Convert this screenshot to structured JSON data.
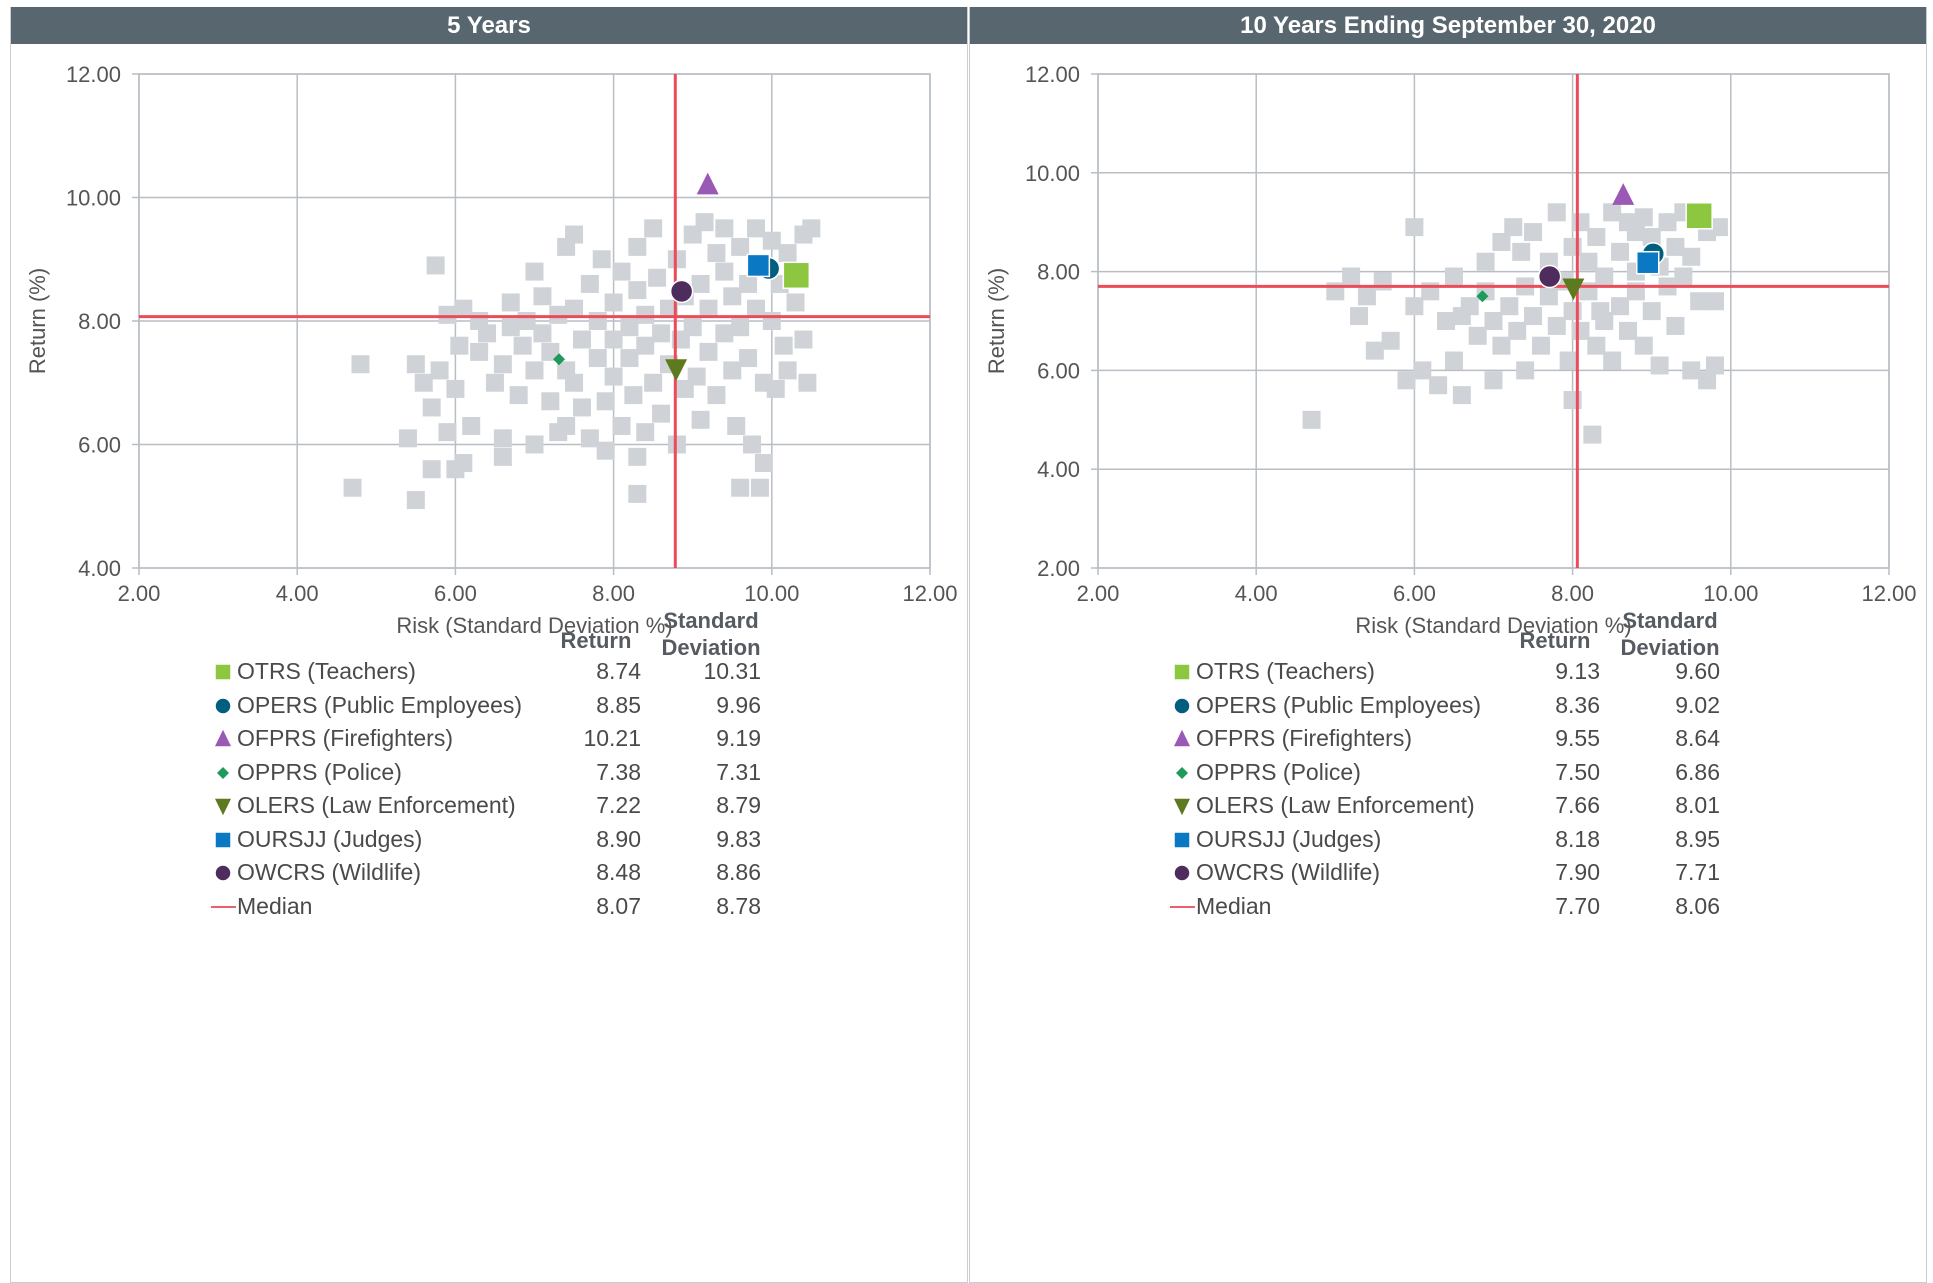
{
  "panels": [
    {
      "title": "5 Years",
      "legend_headers": {
        "return": "Return",
        "std": "Standard Deviation"
      },
      "legend": [
        {
          "label": "OTRS (Teachers)",
          "ret": "8.74",
          "std": "10.31",
          "symbol": "square",
          "color": "#8dc63f"
        },
        {
          "label": "OPERS (Public Employees)",
          "ret": "8.85",
          "std": "9.96",
          "symbol": "circle",
          "color": "#005f7f"
        },
        {
          "label": "OFPRS (Firefighters)",
          "ret": "10.21",
          "std": "9.19",
          "symbol": "triangle",
          "color": "#9b59b6"
        },
        {
          "label": "OPPRS (Police)",
          "ret": "7.38",
          "std": "7.31",
          "symbol": "diamond",
          "color": "#1e9a5a"
        },
        {
          "label": "OLERS (Law Enforcement)",
          "ret": "7.22",
          "std": "8.79",
          "symbol": "triangle-down",
          "color": "#5d7a1f"
        },
        {
          "label": "OURSJJ (Judges)",
          "ret": "8.90",
          "std": "9.83",
          "symbol": "square",
          "color": "#0a78c2"
        },
        {
          "label": "OWCRS (Wildlife)",
          "ret": "8.48",
          "std": "8.86",
          "symbol": "circle",
          "color": "#4e2d5e"
        },
        {
          "label": "Median",
          "ret": "8.07",
          "std": "8.78",
          "symbol": "line",
          "color": "#ec5f6c"
        }
      ]
    },
    {
      "title": "10 Years Ending September 30, 2020",
      "legend_headers": {
        "return": "Return",
        "std": "Standard Deviation"
      },
      "legend": [
        {
          "label": "OTRS (Teachers)",
          "ret": "9.13",
          "std": "9.60",
          "symbol": "square",
          "color": "#8dc63f"
        },
        {
          "label": "OPERS (Public Employees)",
          "ret": "8.36",
          "std": "9.02",
          "symbol": "circle",
          "color": "#005f7f"
        },
        {
          "label": "OFPRS (Firefighters)",
          "ret": "9.55",
          "std": "8.64",
          "symbol": "triangle",
          "color": "#9b59b6"
        },
        {
          "label": "OPPRS (Police)",
          "ret": "7.50",
          "std": "6.86",
          "symbol": "diamond",
          "color": "#1e9a5a"
        },
        {
          "label": "OLERS (Law Enforcement)",
          "ret": "7.66",
          "std": "8.01",
          "symbol": "triangle-down",
          "color": "#5d7a1f"
        },
        {
          "label": "OURSJJ (Judges)",
          "ret": "8.18",
          "std": "8.95",
          "symbol": "square",
          "color": "#0a78c2"
        },
        {
          "label": "OWCRS (Wildlife)",
          "ret": "7.90",
          "std": "7.71",
          "symbol": "circle",
          "color": "#4e2d5e"
        },
        {
          "label": "Median",
          "ret": "7.70",
          "std": "8.06",
          "symbol": "line",
          "color": "#ec5f6c"
        }
      ]
    }
  ],
  "chart_data": [
    {
      "type": "scatter",
      "title": "5 Years",
      "xlabel": "Risk (Standard Deviation %)",
      "ylabel": "Return (%)",
      "xlim": [
        2,
        12
      ],
      "ylim": [
        4,
        12
      ],
      "xticks": [
        "2.00",
        "4.00",
        "6.00",
        "8.00",
        "10.00",
        "12.00"
      ],
      "yticks": [
        "4.00",
        "6.00",
        "8.00",
        "10.00",
        "12.00"
      ],
      "grid": true,
      "median": {
        "x": 8.78,
        "y": 8.07
      },
      "universe_color": "#cfd3d8",
      "universe": [
        [
          4.7,
          5.3
        ],
        [
          4.8,
          7.3
        ],
        [
          5.4,
          6.1
        ],
        [
          5.5,
          7.3
        ],
        [
          5.6,
          7.0
        ],
        [
          5.7,
          6.6
        ],
        [
          5.7,
          5.6
        ],
        [
          5.75,
          8.9
        ],
        [
          5.8,
          7.2
        ],
        [
          5.9,
          6.2
        ],
        [
          5.9,
          8.1
        ],
        [
          6.0,
          6.9
        ],
        [
          6.05,
          7.6
        ],
        [
          6.1,
          5.7
        ],
        [
          6.1,
          8.2
        ],
        [
          6.2,
          6.3
        ],
        [
          6.3,
          7.5
        ],
        [
          6.3,
          8.0
        ],
        [
          6.4,
          7.8
        ],
        [
          6.5,
          7.0
        ],
        [
          6.6,
          6.1
        ],
        [
          6.6,
          5.8
        ],
        [
          6.6,
          7.3
        ],
        [
          6.7,
          7.9
        ],
        [
          6.7,
          8.3
        ],
        [
          6.8,
          6.8
        ],
        [
          6.85,
          7.6
        ],
        [
          6.9,
          8.0
        ],
        [
          7.0,
          7.2
        ],
        [
          7.0,
          6.0
        ],
        [
          7.0,
          8.8
        ],
        [
          7.1,
          7.8
        ],
        [
          7.1,
          8.4
        ],
        [
          7.2,
          6.7
        ],
        [
          7.2,
          7.5
        ],
        [
          7.3,
          6.2
        ],
        [
          7.3,
          8.1
        ],
        [
          7.4,
          7.2
        ],
        [
          7.4,
          6.3
        ],
        [
          7.5,
          8.2
        ],
        [
          7.5,
          9.4
        ],
        [
          7.5,
          7.0
        ],
        [
          7.6,
          7.7
        ],
        [
          7.6,
          6.6
        ],
        [
          7.7,
          8.6
        ],
        [
          7.7,
          6.1
        ],
        [
          7.8,
          7.4
        ],
        [
          7.8,
          8.0
        ],
        [
          7.85,
          9.0
        ],
        [
          7.9,
          6.7
        ],
        [
          7.9,
          5.9
        ],
        [
          8.0,
          8.3
        ],
        [
          8.0,
          7.1
        ],
        [
          8.0,
          7.7
        ],
        [
          8.1,
          6.3
        ],
        [
          8.1,
          8.8
        ],
        [
          8.2,
          7.9
        ],
        [
          8.2,
          7.4
        ],
        [
          8.25,
          6.8
        ],
        [
          8.3,
          9.2
        ],
        [
          8.3,
          8.5
        ],
        [
          8.3,
          5.8
        ],
        [
          8.4,
          7.6
        ],
        [
          8.4,
          8.1
        ],
        [
          8.4,
          6.2
        ],
        [
          8.5,
          7.0
        ],
        [
          8.5,
          9.5
        ],
        [
          8.55,
          8.7
        ],
        [
          8.6,
          7.8
        ],
        [
          8.6,
          6.5
        ],
        [
          8.7,
          8.2
        ],
        [
          8.7,
          7.3
        ],
        [
          8.8,
          9.0
        ],
        [
          8.8,
          6.0
        ],
        [
          8.85,
          7.7
        ],
        [
          8.9,
          8.4
        ],
        [
          8.9,
          6.9
        ],
        [
          9.0,
          9.4
        ],
        [
          9.0,
          7.9
        ],
        [
          9.05,
          7.1
        ],
        [
          9.1,
          8.6
        ],
        [
          9.1,
          6.4
        ],
        [
          9.15,
          9.6
        ],
        [
          9.2,
          8.2
        ],
        [
          9.2,
          7.5
        ],
        [
          9.3,
          9.1
        ],
        [
          9.3,
          6.8
        ],
        [
          9.4,
          8.8
        ],
        [
          9.4,
          7.8
        ],
        [
          9.4,
          9.5
        ],
        [
          9.5,
          8.4
        ],
        [
          9.5,
          7.2
        ],
        [
          9.55,
          6.3
        ],
        [
          9.6,
          9.2
        ],
        [
          9.6,
          7.9
        ],
        [
          9.7,
          8.6
        ],
        [
          9.7,
          7.4
        ],
        [
          9.75,
          6.0
        ],
        [
          9.8,
          9.5
        ],
        [
          9.8,
          8.2
        ],
        [
          9.85,
          5.3
        ],
        [
          9.9,
          7.0
        ],
        [
          9.9,
          5.7
        ],
        [
          10.0,
          9.3
        ],
        [
          10.0,
          8.0
        ],
        [
          10.05,
          6.9
        ],
        [
          10.1,
          8.6
        ],
        [
          10.15,
          7.6
        ],
        [
          10.2,
          9.1
        ],
        [
          10.2,
          7.2
        ],
        [
          10.3,
          8.3
        ],
        [
          10.4,
          9.4
        ],
        [
          10.4,
          7.7
        ],
        [
          10.45,
          7.0
        ],
        [
          10.5,
          9.5
        ],
        [
          8.3,
          5.2
        ],
        [
          7.4,
          9.2
        ],
        [
          6.0,
          5.6
        ],
        [
          5.5,
          5.1
        ],
        [
          9.6,
          5.3
        ]
      ],
      "funds": [
        {
          "name": "OTRS (Teachers)",
          "x": 10.31,
          "y": 8.74,
          "symbol": "square",
          "color": "#8dc63f"
        },
        {
          "name": "OPERS (Public Employees)",
          "x": 9.96,
          "y": 8.85,
          "symbol": "circle",
          "color": "#005f7f"
        },
        {
          "name": "OFPRS (Firefighters)",
          "x": 9.19,
          "y": 10.21,
          "symbol": "triangle",
          "color": "#9b59b6"
        },
        {
          "name": "OPPRS (Police)",
          "x": 7.31,
          "y": 7.38,
          "symbol": "diamond",
          "color": "#1e9a5a"
        },
        {
          "name": "OLERS (Law Enforcement)",
          "x": 8.79,
          "y": 7.22,
          "symbol": "triangle-down",
          "color": "#5d7a1f"
        },
        {
          "name": "OURSJJ (Judges)",
          "x": 9.83,
          "y": 8.9,
          "symbol": "square",
          "color": "#0a78c2"
        },
        {
          "name": "OWCRS (Wildlife)",
          "x": 8.86,
          "y": 8.48,
          "symbol": "circle",
          "color": "#4e2d5e"
        }
      ]
    },
    {
      "type": "scatter",
      "title": "10 Years Ending September 30, 2020",
      "xlabel": "Risk (Standard Deviation %)",
      "ylabel": "Return (%)",
      "xlim": [
        2,
        12
      ],
      "ylim": [
        2,
        12
      ],
      "xticks": [
        "2.00",
        "4.00",
        "6.00",
        "8.00",
        "10.00",
        "12.00"
      ],
      "yticks": [
        "2.00",
        "4.00",
        "6.00",
        "8.00",
        "10.00",
        "12.00"
      ],
      "grid": true,
      "median": {
        "x": 8.06,
        "y": 7.7
      },
      "universe_color": "#cfd3d8",
      "universe": [
        [
          4.7,
          5.0
        ],
        [
          5.0,
          7.6
        ],
        [
          5.2,
          7.9
        ],
        [
          5.3,
          7.1
        ],
        [
          5.4,
          7.5
        ],
        [
          5.5,
          6.4
        ],
        [
          5.6,
          7.8
        ],
        [
          5.7,
          6.6
        ],
        [
          5.9,
          5.8
        ],
        [
          6.0,
          8.9
        ],
        [
          6.0,
          7.3
        ],
        [
          6.1,
          6.0
        ],
        [
          6.2,
          7.6
        ],
        [
          6.3,
          5.7
        ],
        [
          6.4,
          7.0
        ],
        [
          6.5,
          6.2
        ],
        [
          6.5,
          7.9
        ],
        [
          6.6,
          5.5
        ],
        [
          6.7,
          7.3
        ],
        [
          6.8,
          6.7
        ],
        [
          6.9,
          8.2
        ],
        [
          6.9,
          7.6
        ],
        [
          7.0,
          5.8
        ],
        [
          7.0,
          7.0
        ],
        [
          7.1,
          6.5
        ],
        [
          7.1,
          8.6
        ],
        [
          7.2,
          7.3
        ],
        [
          7.25,
          8.9
        ],
        [
          7.3,
          6.8
        ],
        [
          7.4,
          7.7
        ],
        [
          7.4,
          6.0
        ],
        [
          7.5,
          8.8
        ],
        [
          7.5,
          7.1
        ],
        [
          7.6,
          6.5
        ],
        [
          7.7,
          7.5
        ],
        [
          7.7,
          8.2
        ],
        [
          7.8,
          6.9
        ],
        [
          7.8,
          9.2
        ],
        [
          7.9,
          7.8
        ],
        [
          7.95,
          6.2
        ],
        [
          8.0,
          8.5
        ],
        [
          8.0,
          7.2
        ],
        [
          8.0,
          5.4
        ],
        [
          8.1,
          6.8
        ],
        [
          8.1,
          9.0
        ],
        [
          8.2,
          7.6
        ],
        [
          8.2,
          8.2
        ],
        [
          8.25,
          4.7
        ],
        [
          8.3,
          6.5
        ],
        [
          8.3,
          8.7
        ],
        [
          8.4,
          7.9
        ],
        [
          8.4,
          7.0
        ],
        [
          8.5,
          9.2
        ],
        [
          8.5,
          6.2
        ],
        [
          8.6,
          8.4
        ],
        [
          8.6,
          7.3
        ],
        [
          8.7,
          9.0
        ],
        [
          8.7,
          6.8
        ],
        [
          8.8,
          8.0
        ],
        [
          8.8,
          7.6
        ],
        [
          8.9,
          9.1
        ],
        [
          8.9,
          6.5
        ],
        [
          9.0,
          8.7
        ],
        [
          9.0,
          7.2
        ],
        [
          9.1,
          8.1
        ],
        [
          9.1,
          6.1
        ],
        [
          9.2,
          7.7
        ],
        [
          9.2,
          9.0
        ],
        [
          9.3,
          8.5
        ],
        [
          9.3,
          6.9
        ],
        [
          9.4,
          7.9
        ],
        [
          9.4,
          9.2
        ],
        [
          9.5,
          8.3
        ],
        [
          9.5,
          6.0
        ],
        [
          9.6,
          7.4
        ],
        [
          9.7,
          8.8
        ],
        [
          9.7,
          5.8
        ],
        [
          9.8,
          7.4
        ],
        [
          9.8,
          6.1
        ],
        [
          9.85,
          8.9
        ],
        [
          8.35,
          7.2
        ],
        [
          7.35,
          8.4
        ],
        [
          6.6,
          7.1
        ],
        [
          8.8,
          8.8
        ],
        [
          9.0,
          8.3
        ]
      ],
      "funds": [
        {
          "name": "OTRS (Teachers)",
          "x": 9.6,
          "y": 9.13,
          "symbol": "square",
          "color": "#8dc63f"
        },
        {
          "name": "OPERS (Public Employees)",
          "x": 9.02,
          "y": 8.36,
          "symbol": "circle",
          "color": "#005f7f"
        },
        {
          "name": "OFPRS (Firefighters)",
          "x": 8.64,
          "y": 9.55,
          "symbol": "triangle",
          "color": "#9b59b6"
        },
        {
          "name": "OPPRS (Police)",
          "x": 6.86,
          "y": 7.5,
          "symbol": "diamond",
          "color": "#1e9a5a"
        },
        {
          "name": "OLERS (Law Enforcement)",
          "x": 8.01,
          "y": 7.66,
          "symbol": "triangle-down",
          "color": "#5d7a1f"
        },
        {
          "name": "OURSJJ (Judges)",
          "x": 8.95,
          "y": 8.18,
          "symbol": "square",
          "color": "#0a78c2"
        },
        {
          "name": "OWCRS (Wildlife)",
          "x": 7.71,
          "y": 7.9,
          "symbol": "circle",
          "color": "#4e2d5e"
        }
      ]
    }
  ]
}
